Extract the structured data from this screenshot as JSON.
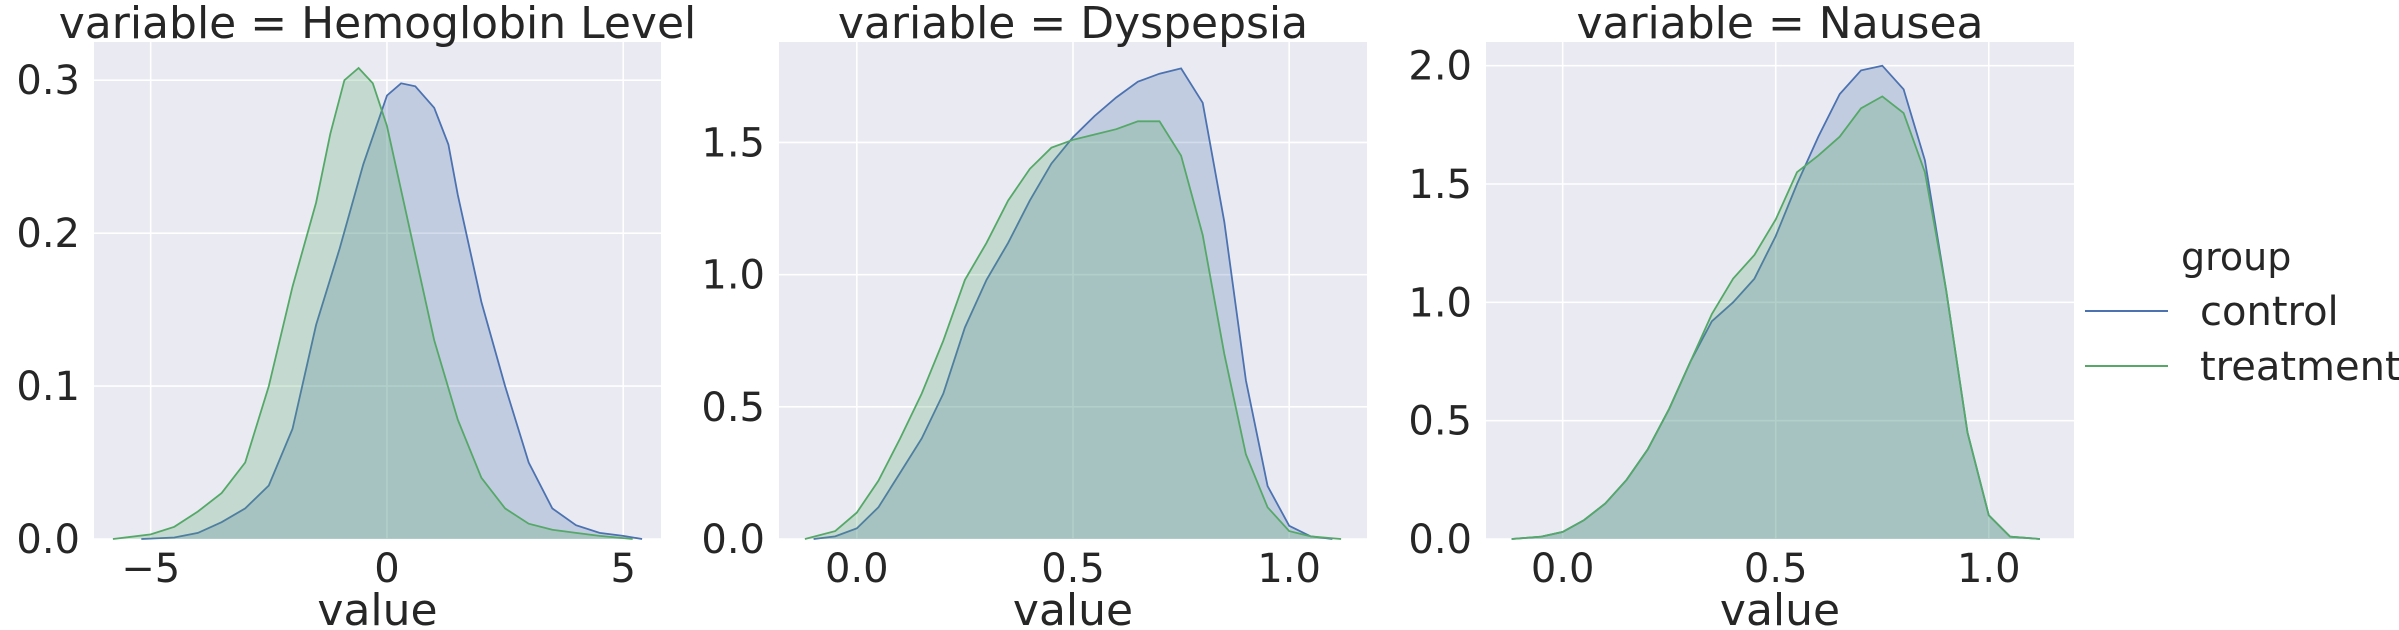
{
  "chart_data": [
    {
      "type": "area",
      "title": "variable = Hemoglobin Level",
      "xlabel": "value",
      "ylabel": "",
      "xlim": [
        -6.2,
        5.8
      ],
      "ylim": [
        0,
        0.325
      ],
      "xticks": [
        -5,
        0,
        5
      ],
      "xtick_labels": [
        "−5",
        "0",
        "5"
      ],
      "yticks": [
        0.0,
        0.1,
        0.2,
        0.3
      ],
      "ytick_labels": [
        "0.0",
        "0.1",
        "0.2",
        "0.3"
      ],
      "grid": true,
      "series": [
        {
          "name": "control",
          "color": "#4c72b0",
          "x": [
            -5.2,
            -4.5,
            -4.0,
            -3.5,
            -3.0,
            -2.5,
            -2.0,
            -1.5,
            -1.0,
            -0.5,
            0.0,
            0.3,
            0.6,
            1.0,
            1.3,
            1.5,
            2.0,
            2.5,
            3.0,
            3.5,
            4.0,
            4.5,
            5.0,
            5.4
          ],
          "values": [
            0.0,
            0.001,
            0.004,
            0.011,
            0.02,
            0.035,
            0.072,
            0.14,
            0.19,
            0.245,
            0.29,
            0.298,
            0.296,
            0.282,
            0.258,
            0.225,
            0.155,
            0.1,
            0.05,
            0.02,
            0.009,
            0.004,
            0.002,
            0.0
          ]
        },
        {
          "name": "treatment",
          "color": "#55a868",
          "x": [
            -5.8,
            -5.0,
            -4.5,
            -4.0,
            -3.5,
            -3.0,
            -2.5,
            -2.0,
            -1.5,
            -1.2,
            -0.9,
            -0.6,
            -0.3,
            0.0,
            0.5,
            1.0,
            1.5,
            2.0,
            2.5,
            3.0,
            3.5,
            4.0,
            4.5,
            5.2
          ],
          "values": [
            0.0,
            0.003,
            0.008,
            0.018,
            0.03,
            0.05,
            0.1,
            0.165,
            0.22,
            0.265,
            0.3,
            0.308,
            0.298,
            0.27,
            0.2,
            0.13,
            0.078,
            0.04,
            0.02,
            0.01,
            0.006,
            0.004,
            0.002,
            0.0
          ]
        }
      ]
    },
    {
      "type": "area",
      "title": "variable = Dyspepsia",
      "xlabel": "value",
      "ylabel": "",
      "xlim": [
        -0.18,
        1.18
      ],
      "ylim": [
        0,
        1.88
      ],
      "xticks": [
        0.0,
        0.5,
        1.0
      ],
      "xtick_labels": [
        "0.0",
        "0.5",
        "1.0"
      ],
      "yticks": [
        0.0,
        0.5,
        1.0,
        1.5
      ],
      "ytick_labels": [
        "0.0",
        "0.5",
        "1.0",
        "1.5"
      ],
      "grid": true,
      "series": [
        {
          "name": "control",
          "color": "#4c72b0",
          "x": [
            -0.1,
            -0.05,
            0.0,
            0.05,
            0.1,
            0.15,
            0.2,
            0.25,
            0.3,
            0.35,
            0.4,
            0.45,
            0.5,
            0.55,
            0.6,
            0.65,
            0.7,
            0.75,
            0.8,
            0.85,
            0.9,
            0.95,
            1.0,
            1.05,
            1.1
          ],
          "values": [
            0.0,
            0.01,
            0.04,
            0.12,
            0.25,
            0.38,
            0.55,
            0.8,
            0.98,
            1.12,
            1.28,
            1.42,
            1.52,
            1.6,
            1.67,
            1.73,
            1.76,
            1.78,
            1.65,
            1.2,
            0.6,
            0.2,
            0.05,
            0.01,
            0.0
          ]
        },
        {
          "name": "treatment",
          "color": "#55a868",
          "x": [
            -0.12,
            -0.05,
            0.0,
            0.05,
            0.1,
            0.15,
            0.2,
            0.25,
            0.3,
            0.35,
            0.4,
            0.45,
            0.5,
            0.55,
            0.6,
            0.65,
            0.7,
            0.75,
            0.8,
            0.85,
            0.9,
            0.95,
            1.0,
            1.05,
            1.12
          ],
          "values": [
            0.0,
            0.03,
            0.1,
            0.22,
            0.38,
            0.55,
            0.75,
            0.98,
            1.12,
            1.28,
            1.4,
            1.48,
            1.51,
            1.53,
            1.55,
            1.58,
            1.58,
            1.45,
            1.15,
            0.7,
            0.32,
            0.12,
            0.03,
            0.01,
            0.0
          ]
        }
      ]
    },
    {
      "type": "area",
      "title": "variable = Nausea",
      "xlabel": "value",
      "ylabel": "",
      "xlim": [
        -0.18,
        1.2
      ],
      "ylim": [
        0,
        2.1
      ],
      "xticks": [
        0.0,
        0.5,
        1.0
      ],
      "xtick_labels": [
        "0.0",
        "0.5",
        "1.0"
      ],
      "yticks": [
        0.0,
        0.5,
        1.0,
        1.5,
        2.0
      ],
      "ytick_labels": [
        "0.0",
        "0.5",
        "1.0",
        "1.5",
        "2.0"
      ],
      "grid": true,
      "series": [
        {
          "name": "control",
          "color": "#4c72b0",
          "x": [
            -0.12,
            -0.05,
            0.0,
            0.05,
            0.1,
            0.15,
            0.2,
            0.25,
            0.3,
            0.35,
            0.4,
            0.45,
            0.5,
            0.55,
            0.6,
            0.65,
            0.7,
            0.75,
            0.8,
            0.85,
            0.9,
            0.95,
            1.0,
            1.05,
            1.12
          ],
          "values": [
            0.0,
            0.01,
            0.03,
            0.08,
            0.15,
            0.25,
            0.38,
            0.55,
            0.75,
            0.92,
            1.0,
            1.1,
            1.28,
            1.5,
            1.7,
            1.88,
            1.98,
            2.0,
            1.9,
            1.6,
            1.05,
            0.45,
            0.1,
            0.01,
            0.0
          ]
        },
        {
          "name": "treatment",
          "color": "#55a868",
          "x": [
            -0.12,
            -0.05,
            0.0,
            0.05,
            0.1,
            0.15,
            0.2,
            0.25,
            0.3,
            0.35,
            0.4,
            0.45,
            0.5,
            0.55,
            0.6,
            0.65,
            0.7,
            0.75,
            0.8,
            0.85,
            0.9,
            0.95,
            1.0,
            1.05,
            1.12
          ],
          "values": [
            0.0,
            0.01,
            0.03,
            0.08,
            0.15,
            0.25,
            0.38,
            0.55,
            0.75,
            0.95,
            1.1,
            1.2,
            1.35,
            1.55,
            1.62,
            1.7,
            1.82,
            1.87,
            1.8,
            1.55,
            1.05,
            0.45,
            0.1,
            0.01,
            0.0
          ]
        }
      ]
    }
  ],
  "legend": {
    "title": "group",
    "placement": "right",
    "entries": [
      {
        "label": "control",
        "color": "#4c72b0"
      },
      {
        "label": "treatment",
        "color": "#55a868"
      }
    ]
  }
}
